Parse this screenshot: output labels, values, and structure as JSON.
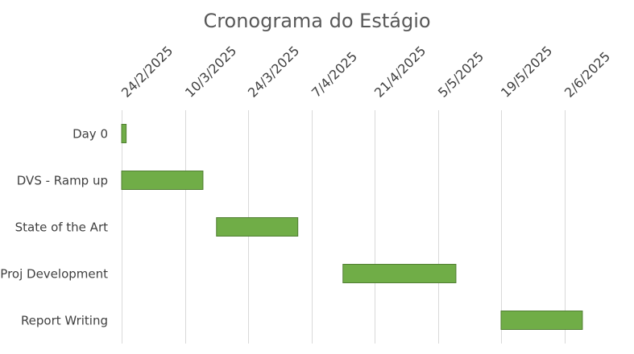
{
  "chart_data": {
    "type": "bar",
    "orientation": "horizontal",
    "subtype": "gantt",
    "title": "Cronograma do Estágio",
    "xlabel": "",
    "ylabel": "",
    "x_axis_position": "top",
    "x_tick_labels": [
      "24/2/2025",
      "10/3/2025",
      "24/3/2025",
      "7/4/2025",
      "21/4/2025",
      "5/5/2025",
      "19/5/2025",
      "2/6/2025"
    ],
    "xlim": [
      "2025-02-24",
      "2025-06-17"
    ],
    "grid": true,
    "legend": "none",
    "categories": [
      "Day 0",
      "DVS - Ramp up",
      "State of the Art",
      "Proj Development",
      "Report Writing"
    ],
    "series": [
      {
        "start": [
          "2025-02-24",
          "2025-02-24",
          "2025-03-17",
          "2025-04-14",
          "2025-05-19"
        ],
        "end": [
          "2025-02-25",
          "2025-03-14",
          "2025-04-04",
          "2025-05-09",
          "2025-06-06"
        ]
      }
    ],
    "colors": {
      "bar_fill": "#70AD47",
      "bar_stroke": "#507E32",
      "grid": "#D9D9D9"
    }
  }
}
